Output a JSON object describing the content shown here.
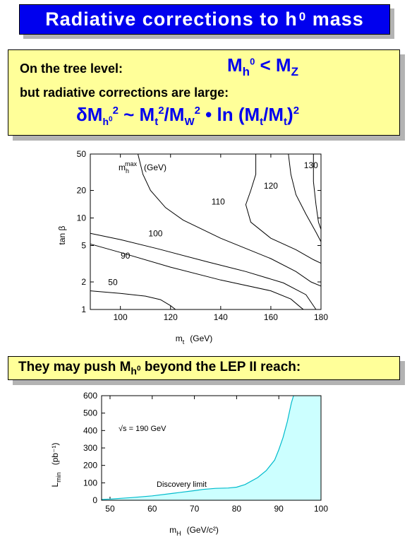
{
  "title": {
    "text": "Radiative corrections to h",
    "sup": "0",
    "tail": " mass"
  },
  "tree": {
    "left": "On the tree level:",
    "right": {
      "m": "M",
      "sub_h": "h",
      "sup0": "0",
      "lt": " < M",
      "subz": "Z"
    }
  },
  "rad": {
    "text": "but radiative corrections are large:",
    "formula": {
      "a": "δM",
      "a_sub": "h",
      "a_subsup": "0",
      "a_sup": "2",
      "b": " ~ M",
      "b_sub": "t",
      "b_sup": "2",
      "c": "/M",
      "c_sub": "W",
      "c_sup": "2",
      "d": " • ln (M",
      "d_sub": "t",
      "e": "/M",
      "e_sub": "t",
      "f": ")",
      "f_sup": "2"
    }
  },
  "push": {
    "text": "They may push M",
    "sub": "h",
    "subsup": "0",
    "tail": " beyond the LEP II reach:"
  },
  "chart_data": [
    {
      "type": "line",
      "xlabel": "m",
      "xlabel_sub": "t",
      "xlabel_unit": "(GeV)",
      "ylabel": "tan β",
      "xlim": [
        88,
        180
      ],
      "ylim": [
        1,
        50
      ],
      "yscale": "log",
      "xticks": [
        100,
        120,
        140,
        160,
        180
      ],
      "yticks": [
        1,
        2,
        5,
        10,
        20,
        50
      ],
      "inner_label": {
        "m": "m",
        "sub": "h",
        "sup": "max",
        "unit": "(GeV)"
      },
      "contours": [
        {
          "label": "50",
          "points": [
            [
              88,
              1.6
            ],
            [
              100,
              1.5
            ],
            [
              110,
              1.4
            ],
            [
              116,
              1.28
            ],
            [
              120,
              1.1
            ],
            [
              122,
              1.0
            ]
          ]
        },
        {
          "label": "90",
          "points": [
            [
              88,
              5.2
            ],
            [
              100,
              4.2
            ],
            [
              120,
              2.9
            ],
            [
              140,
              2.1
            ],
            [
              160,
              1.6
            ],
            [
              168,
              1.3
            ],
            [
              172,
              1.05
            ],
            [
              173,
              1.0
            ]
          ]
        },
        {
          "label": "100",
          "points": [
            [
              88,
              6.8
            ],
            [
              100,
              5.8
            ],
            [
              115,
              4.6
            ],
            [
              135,
              3.3
            ],
            [
              150,
              2.6
            ],
            [
              165,
              1.95
            ],
            [
              174,
              1.45
            ],
            [
              178,
              1.0
            ]
          ]
        },
        {
          "label": "",
          "points": [
            [
              107,
              50
            ],
            [
              109,
              30
            ],
            [
              112,
              20
            ],
            [
              118,
              13
            ],
            [
              125,
              9.5
            ],
            [
              140,
              6
            ],
            [
              160,
              3.6
            ],
            [
              170,
              2.6
            ],
            [
              176,
              2.0
            ],
            [
              180,
              1.8
            ]
          ]
        },
        {
          "label": "110",
          "points": [
            [
              154,
              50
            ],
            [
              154,
              30
            ],
            [
              152,
              20
            ],
            [
              150,
              14
            ],
            [
              152,
              9
            ],
            [
              160,
              6
            ],
            [
              170,
              4.5
            ],
            [
              177,
              3.5
            ],
            [
              180,
              3.2
            ]
          ]
        },
        {
          "label": "120",
          "points": [
            [
              167,
              50
            ],
            [
              168,
              30
            ],
            [
              170,
              18
            ],
            [
              174,
              11
            ],
            [
              178,
              7
            ],
            [
              180,
              5.5
            ]
          ]
        },
        {
          "label": "130",
          "points": [
            [
              177,
              50
            ],
            [
              177,
              25
            ],
            [
              178,
              14
            ],
            [
              179,
              9
            ],
            [
              180,
              7.5
            ]
          ]
        }
      ],
      "contour_labels": [
        {
          "text": "50",
          "x": 97,
          "y": 1.85
        },
        {
          "text": "90",
          "x": 102,
          "y": 3.6
        },
        {
          "text": "100",
          "x": 114,
          "y": 6.3
        },
        {
          "text": "110",
          "x": 139,
          "y": 14.0
        },
        {
          "text": "120",
          "x": 160,
          "y": 21.0
        },
        {
          "text": "130",
          "x": 176,
          "y": 35.0
        }
      ]
    },
    {
      "type": "area",
      "xlabel": "m",
      "xlabel_sub": "H",
      "xlabel_unit": "(GeV/c²)",
      "ylabel": "L",
      "ylabel_sub": "min",
      "ylabel_unit": "(pb⁻¹)",
      "xlim": [
        48,
        100
      ],
      "ylim": [
        0,
        600
      ],
      "xticks": [
        50,
        60,
        70,
        80,
        90,
        100
      ],
      "yticks": [
        0,
        100,
        200,
        300,
        400,
        500,
        600
      ],
      "annotation": "√s = 190 GeV",
      "curve_label": "Discovery limit",
      "fill_color": "#ccffff",
      "line_color": "#00bbcc",
      "points": [
        [
          48,
          5
        ],
        [
          50,
          7
        ],
        [
          55,
          15
        ],
        [
          60,
          25
        ],
        [
          65,
          40
        ],
        [
          70,
          55
        ],
        [
          72,
          62
        ],
        [
          75,
          68
        ],
        [
          78,
          70
        ],
        [
          80,
          75
        ],
        [
          82,
          90
        ],
        [
          85,
          130
        ],
        [
          87,
          170
        ],
        [
          89,
          230
        ],
        [
          90,
          290
        ],
        [
          91,
          360
        ],
        [
          92,
          450
        ],
        [
          93,
          560
        ],
        [
          93.5,
          600
        ]
      ]
    }
  ]
}
